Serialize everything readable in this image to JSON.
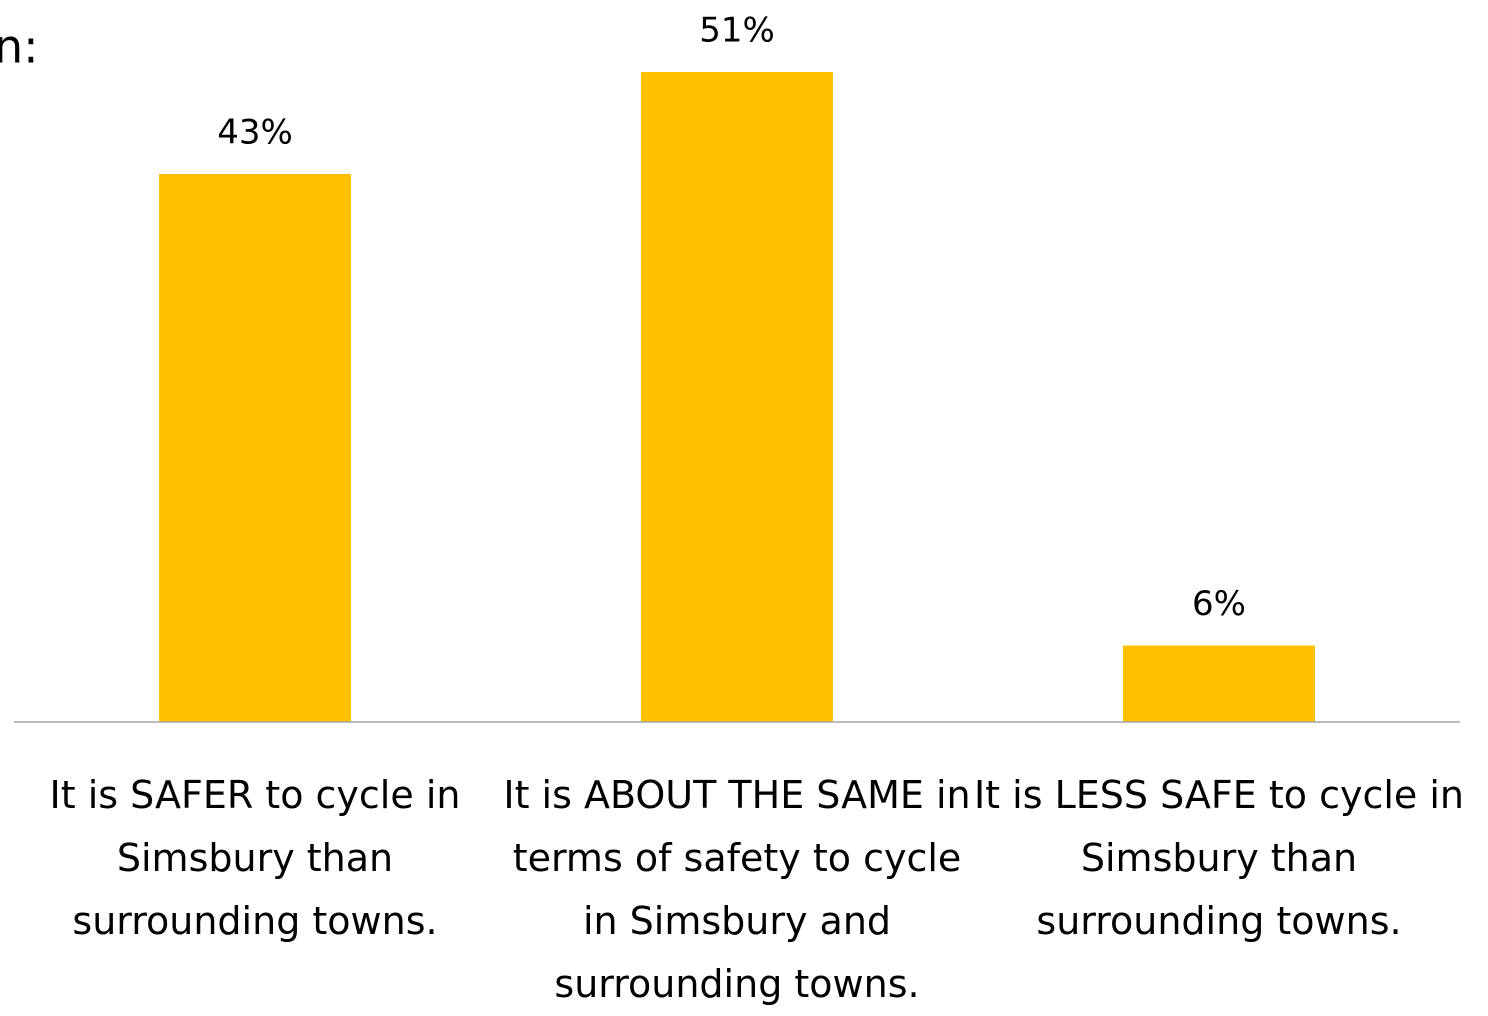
{
  "chart_data": {
    "type": "bar",
    "title": "n:",
    "categories": [
      "It is SAFER to cycle in\nSimsbury than\nsurrounding towns.",
      "It is ABOUT THE SAME in\nterms of safety to cycle\nin Simsbury and\nsurrounding towns.",
      "It is LESS SAFE to cycle in\nSimsbury than\nsurrounding towns."
    ],
    "values": [
      43,
      51,
      6
    ],
    "value_labels": [
      "43%",
      "51%",
      "6%"
    ],
    "color": "#ffc000",
    "ylim": [
      0,
      51
    ]
  }
}
